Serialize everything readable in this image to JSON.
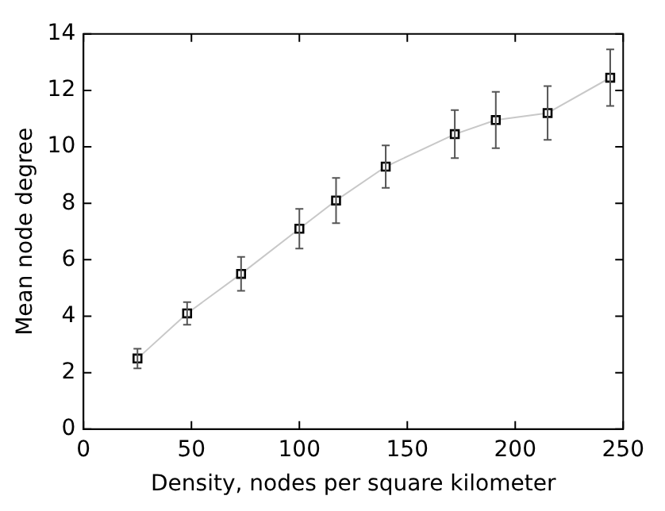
{
  "chart_data": {
    "type": "line",
    "xlabel": "Density, nodes per square kilometer",
    "ylabel": "Mean node degree",
    "x": [
      25,
      48,
      73,
      100,
      117,
      140,
      172,
      191,
      215,
      244
    ],
    "series": [
      {
        "color": "#000000",
        "values": [
          2.5,
          4.1,
          5.5,
          7.1,
          8.1,
          9.3,
          10.45,
          10.95,
          11.2,
          12.45
        ],
        "errors": [
          0.35,
          0.4,
          0.6,
          0.7,
          0.8,
          0.75,
          0.85,
          1.0,
          0.95,
          1.0
        ]
      }
    ],
    "xlim": [
      0,
      250
    ],
    "xticks": [
      0,
      50,
      100,
      150,
      200,
      250
    ],
    "ylim": [
      0,
      14
    ],
    "yticks": [
      0,
      2,
      4,
      6,
      8,
      10,
      12,
      14
    ],
    "grid": false,
    "legend": false,
    "marker": "square",
    "line_style": "solid"
  }
}
